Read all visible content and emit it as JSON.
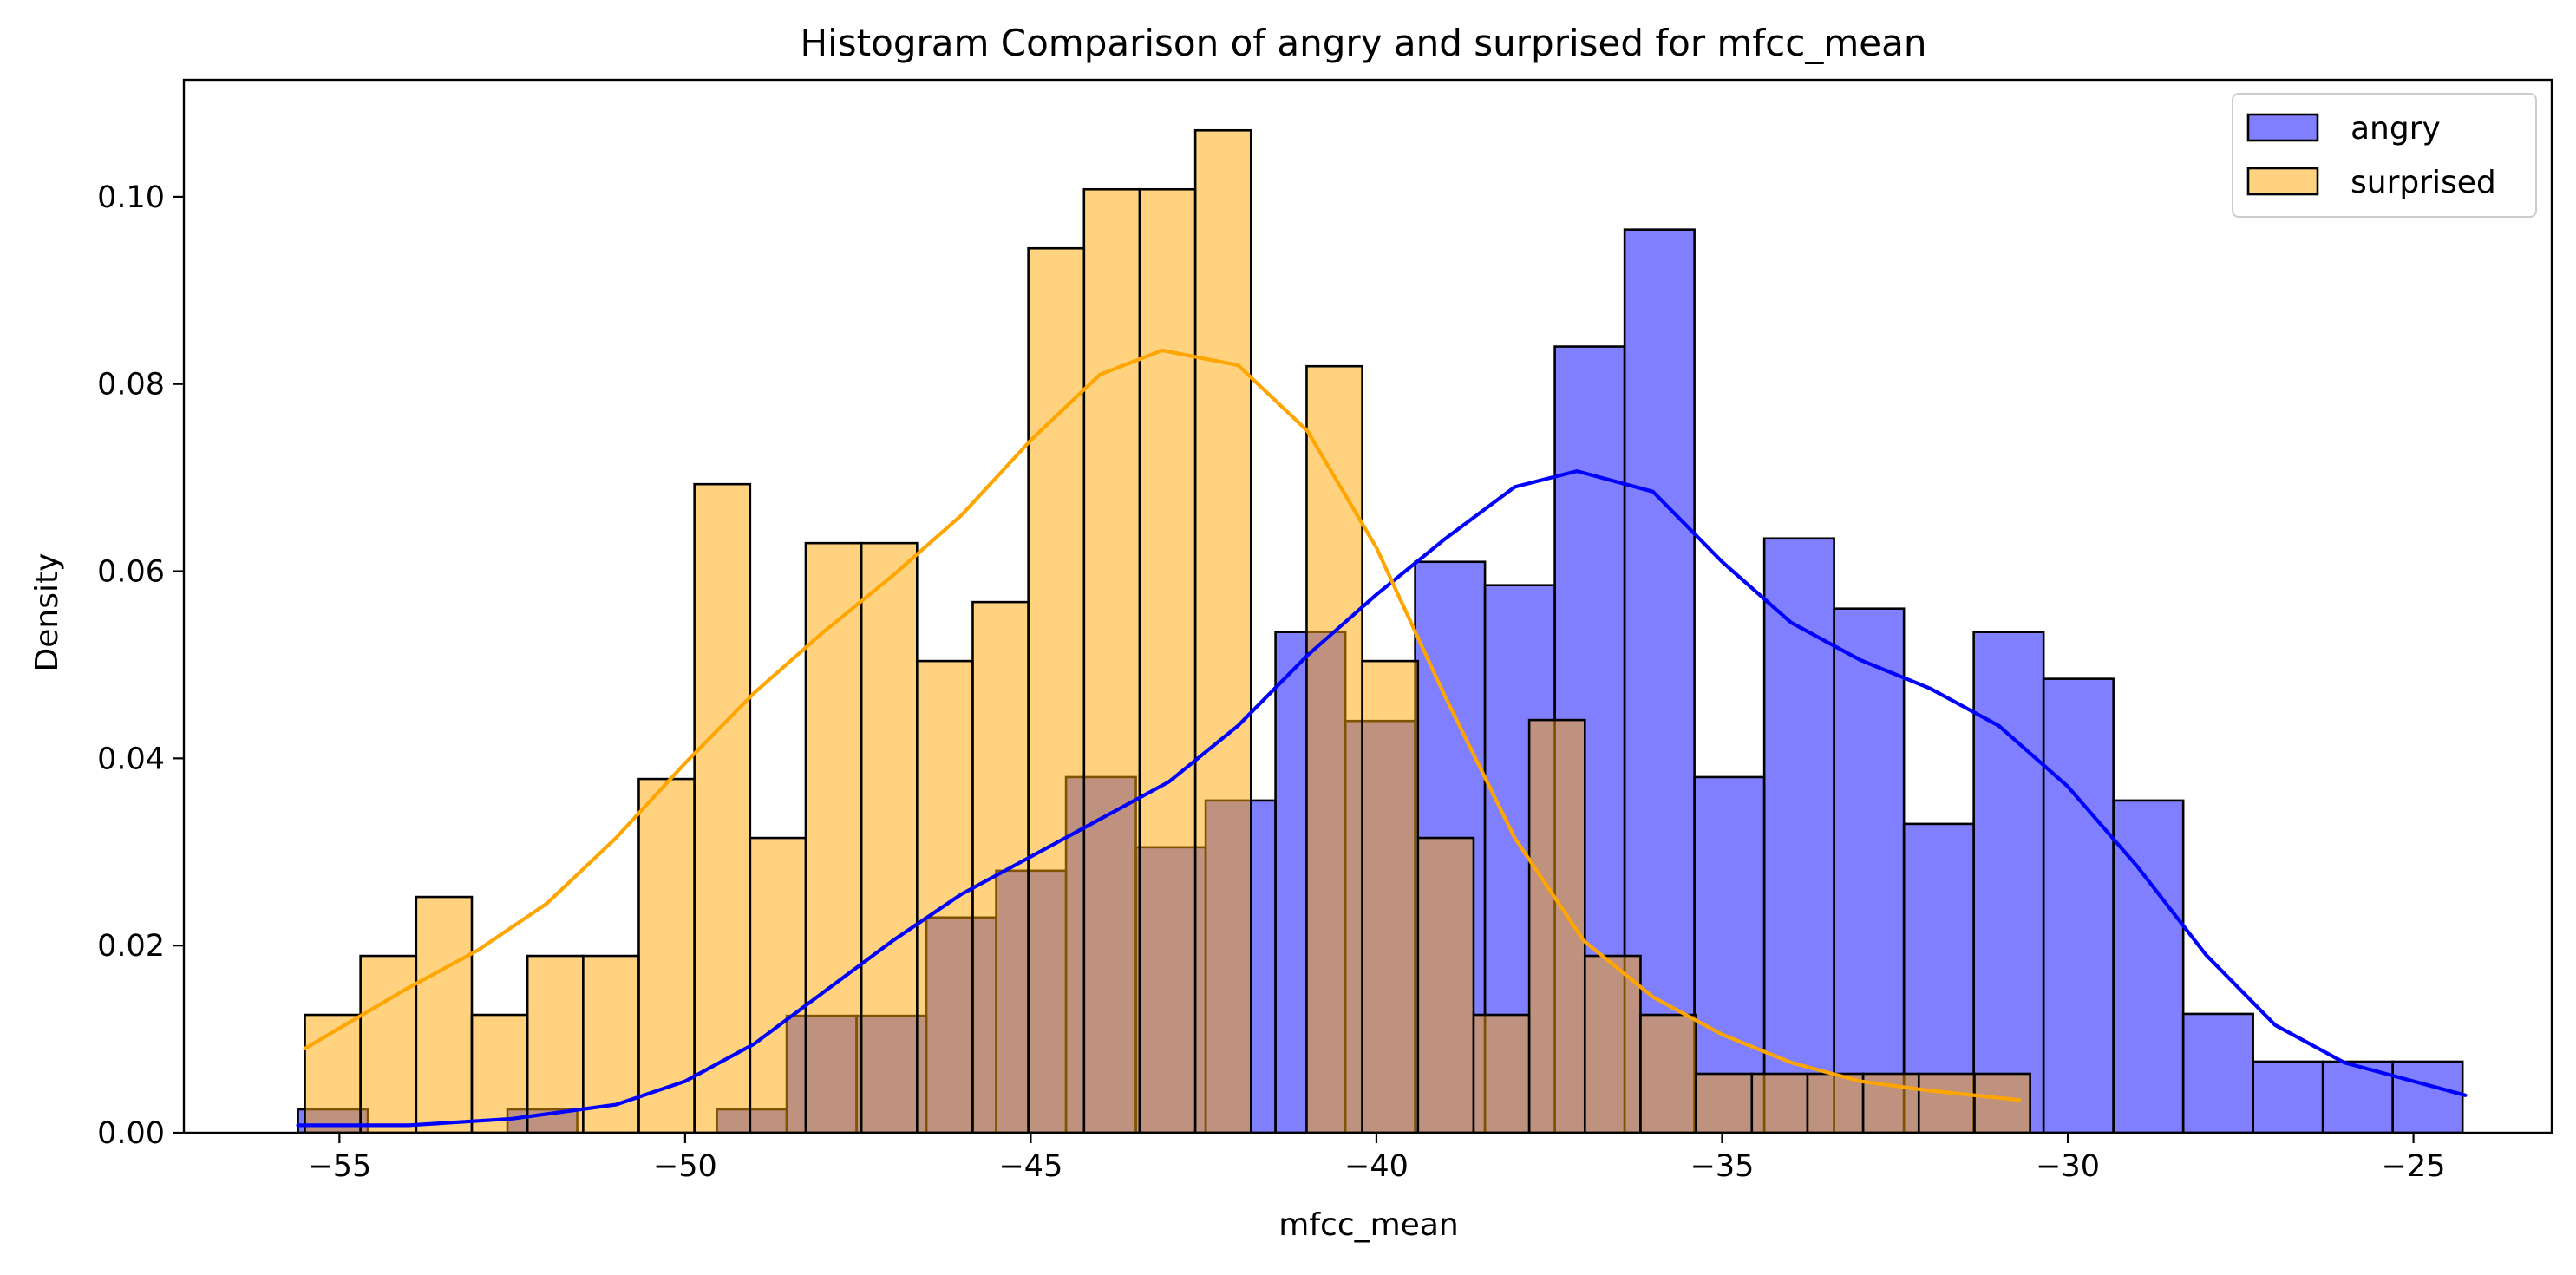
{
  "chart_data": {
    "type": "bar",
    "chart_kind": "overlaid histograms with KDE curves",
    "title": "Histogram Comparison of angry and surprised for mfcc_mean",
    "xlabel": "mfcc_mean",
    "ylabel": "Density",
    "xlim": [
      -57.25,
      -23.0
    ],
    "ylim": [
      0,
      0.1125
    ],
    "x_ticks": [
      -55,
      -50,
      -45,
      -40,
      -35,
      -30,
      -25
    ],
    "x_tick_labels": [
      "−55",
      "−50",
      "−45",
      "−40",
      "−35",
      "−30",
      "−25"
    ],
    "y_ticks": [
      0.0,
      0.02,
      0.04,
      0.06,
      0.08,
      0.1
    ],
    "y_tick_labels": [
      "0.00",
      "0.02",
      "0.04",
      "0.06",
      "0.08",
      "0.10"
    ],
    "grid": false,
    "legend_position": "top-right",
    "series": [
      {
        "name": "angry",
        "color": "#0000ff",
        "bar_fill": "#8080ff",
        "bin_width": 1.01,
        "bins": [
          {
            "x0": -55.6,
            "density": 0.0025
          },
          {
            "x0": -52.57,
            "density": 0.0025
          },
          {
            "x0": -49.54,
            "density": 0.0025
          },
          {
            "x0": -48.53,
            "density": 0.0125
          },
          {
            "x0": -47.52,
            "density": 0.0125
          },
          {
            "x0": -46.51,
            "density": 0.023
          },
          {
            "x0": -45.5,
            "density": 0.028
          },
          {
            "x0": -44.49,
            "density": 0.038
          },
          {
            "x0": -43.48,
            "density": 0.0305
          },
          {
            "x0": -42.47,
            "density": 0.0355
          },
          {
            "x0": -41.46,
            "density": 0.0535
          },
          {
            "x0": -40.45,
            "density": 0.044
          },
          {
            "x0": -39.44,
            "density": 0.061
          },
          {
            "x0": -38.43,
            "density": 0.0585
          },
          {
            "x0": -37.42,
            "density": 0.084
          },
          {
            "x0": -36.41,
            "density": 0.0965
          },
          {
            "x0": -35.4,
            "density": 0.038
          },
          {
            "x0": -34.39,
            "density": 0.0635
          },
          {
            "x0": -33.38,
            "density": 0.056
          },
          {
            "x0": -32.37,
            "density": 0.033
          },
          {
            "x0": -31.36,
            "density": 0.0535
          },
          {
            "x0": -30.35,
            "density": 0.0485
          },
          {
            "x0": -29.34,
            "density": 0.0355
          },
          {
            "x0": -28.33,
            "density": 0.0127
          },
          {
            "x0": -27.32,
            "density": 0.0076
          },
          {
            "x0": -26.31,
            "density": 0.0076
          },
          {
            "x0": -25.3,
            "density": 0.0076
          }
        ],
        "kde": [
          [
            -55.6,
            0.0008
          ],
          [
            -54.0,
            0.0008
          ],
          [
            -52.5,
            0.0015
          ],
          [
            -51.0,
            0.003
          ],
          [
            -50.0,
            0.0055
          ],
          [
            -49.0,
            0.0095
          ],
          [
            -48.0,
            0.015
          ],
          [
            -47.0,
            0.0205
          ],
          [
            -46.0,
            0.0255
          ],
          [
            -45.0,
            0.0295
          ],
          [
            -44.0,
            0.0335
          ],
          [
            -43.0,
            0.0375
          ],
          [
            -42.0,
            0.0435
          ],
          [
            -41.0,
            0.051
          ],
          [
            -40.0,
            0.0575
          ],
          [
            -39.0,
            0.0635
          ],
          [
            -38.0,
            0.069
          ],
          [
            -37.1,
            0.0707
          ],
          [
            -36.0,
            0.0685
          ],
          [
            -35.0,
            0.061
          ],
          [
            -34.0,
            0.0545
          ],
          [
            -33.0,
            0.0505
          ],
          [
            -32.0,
            0.0475
          ],
          [
            -31.0,
            0.0435
          ],
          [
            -30.0,
            0.037
          ],
          [
            -29.0,
            0.0285
          ],
          [
            -28.0,
            0.019
          ],
          [
            -27.0,
            0.0115
          ],
          [
            -26.0,
            0.0075
          ],
          [
            -25.0,
            0.0055
          ],
          [
            -24.25,
            0.004
          ]
        ]
      },
      {
        "name": "surprised",
        "color": "#ffa500",
        "bar_fill": "#ffd280",
        "bin_width": 0.805,
        "bins": [
          {
            "x0": -55.5,
            "density": 0.0126
          },
          {
            "x0": -54.695,
            "density": 0.0189
          },
          {
            "x0": -53.89,
            "density": 0.0252
          },
          {
            "x0": -53.085,
            "density": 0.0126
          },
          {
            "x0": -52.28,
            "density": 0.0189
          },
          {
            "x0": -51.475,
            "density": 0.0189
          },
          {
            "x0": -50.67,
            "density": 0.0378
          },
          {
            "x0": -49.865,
            "density": 0.0693
          },
          {
            "x0": -49.06,
            "density": 0.0315
          },
          {
            "x0": -48.255,
            "density": 0.063
          },
          {
            "x0": -47.45,
            "density": 0.063
          },
          {
            "x0": -46.645,
            "density": 0.0504
          },
          {
            "x0": -45.84,
            "density": 0.0567
          },
          {
            "x0": -45.035,
            "density": 0.0945
          },
          {
            "x0": -44.23,
            "density": 0.1008
          },
          {
            "x0": -43.425,
            "density": 0.1008
          },
          {
            "x0": -42.62,
            "density": 0.1071
          },
          {
            "x0": -41.815,
            "density": 0.0
          },
          {
            "x0": -41.01,
            "density": 0.0819
          },
          {
            "x0": -40.205,
            "density": 0.0504
          },
          {
            "x0": -39.4,
            "density": 0.0315
          },
          {
            "x0": -38.595,
            "density": 0.0126
          },
          {
            "x0": -37.79,
            "density": 0.0441
          },
          {
            "x0": -36.985,
            "density": 0.0189
          },
          {
            "x0": -36.18,
            "density": 0.0126
          },
          {
            "x0": -35.375,
            "density": 0.0063
          },
          {
            "x0": -34.57,
            "density": 0.0063
          },
          {
            "x0": -33.765,
            "density": 0.0063
          },
          {
            "x0": -32.96,
            "density": 0.0063
          },
          {
            "x0": -32.155,
            "density": 0.0063
          },
          {
            "x0": -31.35,
            "density": 0.0063
          }
        ],
        "kde": [
          [
            -55.5,
            0.009
          ],
          [
            -54.0,
            0.0155
          ],
          [
            -53.0,
            0.0195
          ],
          [
            -52.0,
            0.0245
          ],
          [
            -51.0,
            0.0315
          ],
          [
            -50.0,
            0.0395
          ],
          [
            -49.0,
            0.047
          ],
          [
            -48.0,
            0.0535
          ],
          [
            -47.0,
            0.0595
          ],
          [
            -46.0,
            0.066
          ],
          [
            -45.0,
            0.074
          ],
          [
            -44.0,
            0.081
          ],
          [
            -43.1,
            0.0836
          ],
          [
            -42.0,
            0.082
          ],
          [
            -41.0,
            0.075
          ],
          [
            -40.0,
            0.0625
          ],
          [
            -39.0,
            0.0465
          ],
          [
            -38.0,
            0.0315
          ],
          [
            -37.0,
            0.0205
          ],
          [
            -36.0,
            0.0145
          ],
          [
            -35.0,
            0.0105
          ],
          [
            -34.0,
            0.0075
          ],
          [
            -33.0,
            0.0055
          ],
          [
            -32.0,
            0.0045
          ],
          [
            -30.7,
            0.0035
          ]
        ]
      }
    ]
  }
}
